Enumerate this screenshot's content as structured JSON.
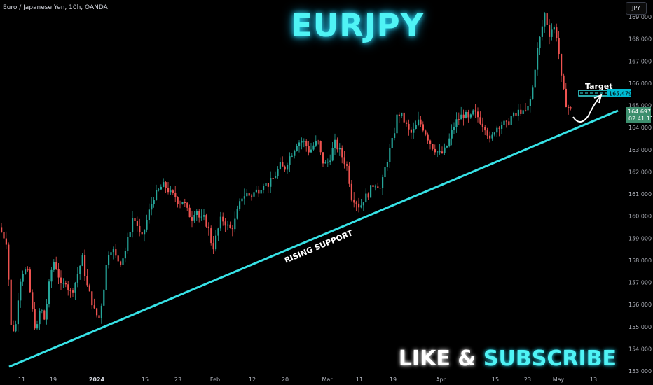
{
  "symbol_info": "Euro / Japanese Yen, 10h, OANDA",
  "currency_button": "JPY",
  "title": "EURJPY",
  "trendline_label": "RISING SUPPORT",
  "target_label": "Target",
  "cta": {
    "word1": "LIKE",
    "amp": "&",
    "word2": "SUBSCRIBE"
  },
  "price_tags": {
    "target": "165.479",
    "last": "164.697",
    "countdown": "02:41:11"
  },
  "colors": {
    "up": "#26a69a",
    "down": "#ef5350",
    "trendline": "#37e2e6",
    "target_tag": "#00bcd4",
    "last_tag": "#3d8f6e",
    "background": "#000000",
    "axis_text": "#b2b5be"
  },
  "chart_data": {
    "type": "candlestick",
    "title": "",
    "y_axis": {
      "labels": [
        "169.000",
        "168.000",
        "167.000",
        "166.000",
        "165.000",
        "164.000",
        "163.000",
        "162.000",
        "161.000",
        "160.000",
        "159.000",
        "158.000",
        "157.000",
        "156.000",
        "155.000",
        "154.000",
        "153.000"
      ],
      "values": [
        169,
        168,
        167,
        166,
        165,
        164,
        163,
        162,
        161,
        160,
        159,
        158,
        157,
        156,
        155,
        154,
        153
      ],
      "range": [
        152.95,
        169.5
      ]
    },
    "x_axis": {
      "ticks": [
        {
          "label": "11",
          "bold": false
        },
        {
          "label": "19",
          "bold": false
        },
        {
          "label": "2024",
          "bold": true
        },
        {
          "label": "15",
          "bold": false
        },
        {
          "label": "23",
          "bold": false
        },
        {
          "label": "Feb",
          "bold": false
        },
        {
          "label": "12",
          "bold": false
        },
        {
          "label": "20",
          "bold": false
        },
        {
          "label": "Mar",
          "bold": false
        },
        {
          "label": "11",
          "bold": false
        },
        {
          "label": "19",
          "bold": false
        },
        {
          "label": "Apr",
          "bold": false
        },
        {
          "label": "15",
          "bold": false
        },
        {
          "label": "23",
          "bold": false
        },
        {
          "label": "May",
          "bold": false
        },
        {
          "label": "13",
          "bold": false
        }
      ]
    },
    "price_path": [
      [
        0,
        159.5
      ],
      [
        6,
        159.2
      ],
      [
        12,
        158.8
      ],
      [
        18,
        155.0
      ],
      [
        24,
        154.8
      ],
      [
        30,
        157.0
      ],
      [
        36,
        157.6
      ],
      [
        42,
        157.4
      ],
      [
        48,
        155.8
      ],
      [
        54,
        154.7
      ],
      [
        60,
        155.9
      ],
      [
        66,
        155.3
      ],
      [
        72,
        156.8
      ],
      [
        78,
        158.0
      ],
      [
        84,
        157.6
      ],
      [
        90,
        156.7
      ],
      [
        96,
        157.1
      ],
      [
        102,
        156.5
      ],
      [
        108,
        156.8
      ],
      [
        114,
        157.5
      ],
      [
        120,
        158.1
      ],
      [
        126,
        156.9
      ],
      [
        132,
        156.3
      ],
      [
        138,
        155.6
      ],
      [
        144,
        155.4
      ],
      [
        150,
        156.6
      ],
      [
        156,
        158.3
      ],
      [
        162,
        158.6
      ],
      [
        168,
        158.1
      ],
      [
        174,
        157.9
      ],
      [
        180,
        158.3
      ],
      [
        186,
        159.1
      ],
      [
        192,
        160.0
      ],
      [
        198,
        159.6
      ],
      [
        204,
        158.9
      ],
      [
        210,
        159.6
      ],
      [
        216,
        160.3
      ],
      [
        222,
        160.9
      ],
      [
        228,
        161.1
      ],
      [
        234,
        161.4
      ],
      [
        240,
        161.3
      ],
      [
        246,
        161.0
      ],
      [
        252,
        160.9
      ],
      [
        258,
        160.6
      ],
      [
        264,
        160.7
      ],
      [
        270,
        160.2
      ],
      [
        276,
        159.9
      ],
      [
        282,
        160.4
      ],
      [
        288,
        159.8
      ],
      [
        294,
        159.9
      ],
      [
        300,
        159.4
      ],
      [
        306,
        158.5
      ],
      [
        312,
        159.2
      ],
      [
        318,
        159.9
      ],
      [
        324,
        159.7
      ],
      [
        330,
        159.4
      ],
      [
        336,
        159.6
      ],
      [
        342,
        160.3
      ],
      [
        348,
        160.9
      ],
      [
        354,
        161.0
      ],
      [
        360,
        160.9
      ],
      [
        366,
        161.1
      ],
      [
        372,
        161.2
      ],
      [
        378,
        161.5
      ],
      [
        384,
        161.4
      ],
      [
        390,
        161.6
      ],
      [
        396,
        161.9
      ],
      [
        402,
        162.3
      ],
      [
        408,
        162.1
      ],
      [
        414,
        162.6
      ],
      [
        420,
        162.9
      ],
      [
        426,
        163.3
      ],
      [
        432,
        163.4
      ],
      [
        438,
        163.3
      ],
      [
        444,
        162.9
      ],
      [
        450,
        163.2
      ],
      [
        456,
        163.4
      ],
      [
        462,
        162.5
      ],
      [
        468,
        162.3
      ],
      [
        474,
        162.7
      ],
      [
        480,
        163.3
      ],
      [
        486,
        163.0
      ],
      [
        492,
        162.6
      ],
      [
        498,
        162.2
      ],
      [
        504,
        160.9
      ],
      [
        510,
        160.7
      ],
      [
        516,
        160.4
      ],
      [
        522,
        160.8
      ],
      [
        528,
        161.0
      ],
      [
        534,
        161.4
      ],
      [
        540,
        161.5
      ],
      [
        546,
        161.2
      ],
      [
        552,
        162.2
      ],
      [
        558,
        162.9
      ],
      [
        564,
        163.6
      ],
      [
        570,
        164.7
      ],
      [
        576,
        164.5
      ],
      [
        582,
        164.1
      ],
      [
        588,
        163.7
      ],
      [
        594,
        163.9
      ],
      [
        600,
        164.3
      ],
      [
        606,
        164.0
      ],
      [
        612,
        163.6
      ],
      [
        618,
        163.2
      ],
      [
        624,
        163.0
      ],
      [
        630,
        162.8
      ],
      [
        636,
        162.9
      ],
      [
        642,
        163.3
      ],
      [
        648,
        163.9
      ],
      [
        654,
        164.3
      ],
      [
        660,
        164.5
      ],
      [
        666,
        164.6
      ],
      [
        672,
        164.3
      ],
      [
        678,
        164.7
      ],
      [
        684,
        164.5
      ],
      [
        690,
        164.2
      ],
      [
        696,
        164.0
      ],
      [
        702,
        163.3
      ],
      [
        708,
        163.9
      ],
      [
        714,
        164.1
      ],
      [
        720,
        164.2
      ],
      [
        726,
        164.1
      ],
      [
        732,
        164.5
      ],
      [
        738,
        164.5
      ],
      [
        744,
        164.8
      ],
      [
        750,
        164.6
      ],
      [
        756,
        164.9
      ],
      [
        762,
        165.6
      ],
      [
        768,
        167.3
      ],
      [
        774,
        168.2
      ],
      [
        780,
        169.2
      ],
      [
        786,
        168.2
      ],
      [
        792,
        168.6
      ],
      [
        798,
        168.0
      ],
      [
        804,
        166.0
      ],
      [
        810,
        165.1
      ],
      [
        816,
        164.8
      ]
    ]
  }
}
